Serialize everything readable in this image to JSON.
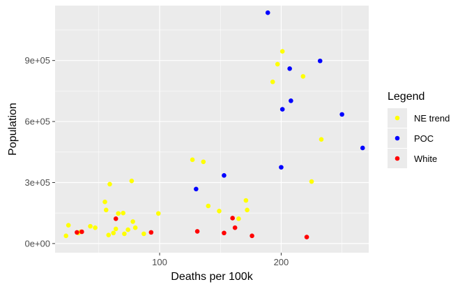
{
  "chart_data": {
    "type": "scatter",
    "title": "",
    "xlabel": "Deaths per 100k",
    "ylabel": "Population",
    "xlim": [
      14,
      272
    ],
    "ylim": [
      -45000,
      1170000
    ],
    "x_ticks": [
      100,
      200
    ],
    "x_minor_ticks": [
      50,
      150,
      250
    ],
    "y_ticks": [
      0,
      300000,
      600000,
      900000
    ],
    "y_tick_labels": [
      "0e+00",
      "3e+05",
      "6e+05",
      "9e+05"
    ],
    "y_minor_ticks": [
      150000,
      450000,
      750000,
      1050000
    ],
    "grid": true,
    "legend_title": "Legend",
    "legend_position": "right",
    "series": [
      {
        "name": "NE trend",
        "color": "#ffff00",
        "points": [
          [
            23,
            38000
          ],
          [
            25,
            90000
          ],
          [
            33,
            52000
          ],
          [
            35,
            58000
          ],
          [
            43,
            85000
          ],
          [
            47,
            78000
          ],
          [
            55,
            205000
          ],
          [
            56,
            165000
          ],
          [
            58,
            42000
          ],
          [
            59,
            292000
          ],
          [
            62,
            52000
          ],
          [
            64,
            72000
          ],
          [
            66,
            148000
          ],
          [
            70,
            150000
          ],
          [
            71,
            48000
          ],
          [
            74,
            68000
          ],
          [
            77,
            308000
          ],
          [
            78,
            108000
          ],
          [
            80,
            78000
          ],
          [
            87,
            48000
          ],
          [
            99,
            148000
          ],
          [
            127,
            412000
          ],
          [
            136,
            402000
          ],
          [
            140,
            185000
          ],
          [
            149,
            160000
          ],
          [
            165,
            122000
          ],
          [
            171,
            212000
          ],
          [
            172,
            165000
          ],
          [
            193,
            795000
          ],
          [
            197,
            882000
          ],
          [
            201,
            945000
          ],
          [
            218,
            822000
          ],
          [
            225,
            305000
          ],
          [
            233,
            512000
          ]
        ]
      },
      {
        "name": "POC",
        "color": "#0000ff",
        "points": [
          [
            130,
            268000
          ],
          [
            153,
            335000
          ],
          [
            189,
            1135000
          ],
          [
            200,
            375000
          ],
          [
            201,
            660000
          ],
          [
            207,
            860000
          ],
          [
            208,
            702000
          ],
          [
            232,
            898000
          ],
          [
            250,
            635000
          ],
          [
            267,
            470000
          ]
        ]
      },
      {
        "name": "White",
        "color": "#ff0000",
        "points": [
          [
            32,
            55000
          ],
          [
            36,
            58000
          ],
          [
            64,
            122000
          ],
          [
            93,
            55000
          ],
          [
            131,
            60000
          ],
          [
            153,
            52000
          ],
          [
            160,
            125000
          ],
          [
            162,
            78000
          ],
          [
            176,
            38000
          ],
          [
            221,
            32000
          ]
        ]
      }
    ]
  }
}
